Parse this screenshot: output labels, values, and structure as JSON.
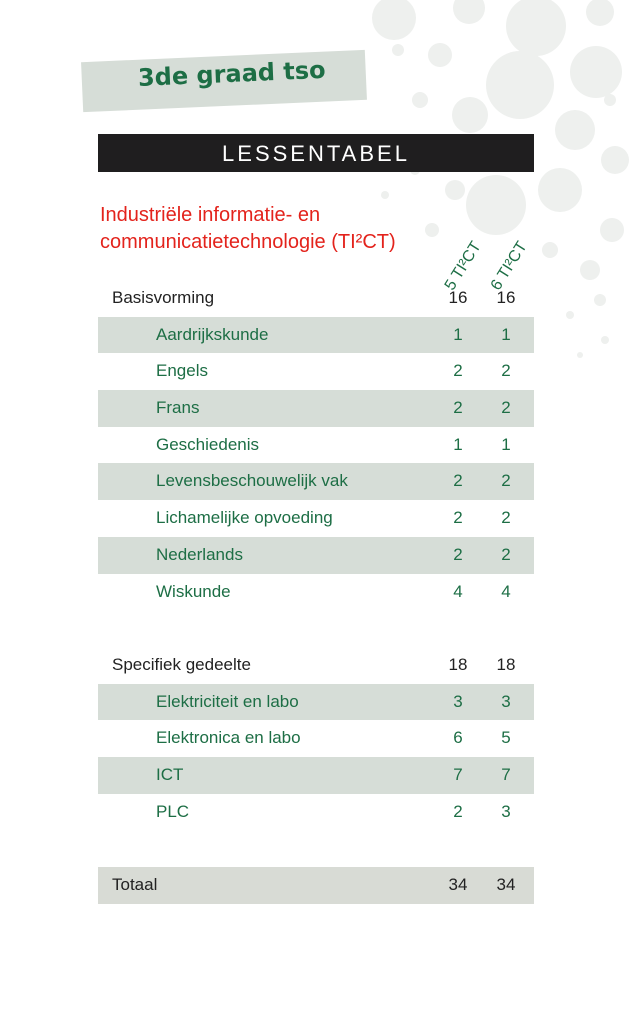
{
  "header": {
    "grade": "3de graad tso",
    "title": "LESSENTABEL",
    "program_line1": "Industriële informatie- en",
    "program_line2": "communicatietechnologie (TI²CT)"
  },
  "columns": [
    "5 TI²CT",
    "6 TI²CT"
  ],
  "basis": {
    "label": "Basisvorming",
    "v5": "16",
    "v6": "16",
    "subjects": [
      {
        "label": "Aardrijkskunde",
        "v5": "1",
        "v6": "1"
      },
      {
        "label": "Engels",
        "v5": "2",
        "v6": "2"
      },
      {
        "label": "Frans",
        "v5": "2",
        "v6": "2"
      },
      {
        "label": "Geschiedenis",
        "v5": "1",
        "v6": "1"
      },
      {
        "label": "Levensbeschouwelijk vak",
        "v5": "2",
        "v6": "2"
      },
      {
        "label": "Lichamelijke opvoeding",
        "v5": "2",
        "v6": "2"
      },
      {
        "label": "Nederlands",
        "v5": "2",
        "v6": "2"
      },
      {
        "label": "Wiskunde",
        "v5": "4",
        "v6": "4"
      }
    ]
  },
  "specific": {
    "label": "Specifiek gedeelte",
    "v5": "18",
    "v6": "18",
    "subjects": [
      {
        "label": "Elektriciteit en labo",
        "v5": "3",
        "v6": "3"
      },
      {
        "label": "Elektronica en labo",
        "v5": "6",
        "v6": "5"
      },
      {
        "label": "ICT",
        "v5": "7",
        "v6": "7"
      },
      {
        "label": "PLC",
        "v5": "2",
        "v6": "3"
      }
    ]
  },
  "total": {
    "label": "Totaal",
    "v5": "34",
    "v6": "34"
  },
  "colors": {
    "green": "#1d6e45",
    "red": "#e3231c",
    "shade": "#d6ddd7",
    "bar": "#1f1e1f"
  }
}
